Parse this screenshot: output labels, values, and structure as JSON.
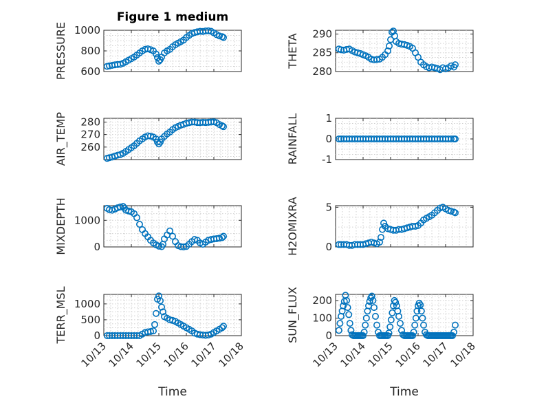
{
  "figure": {
    "title": "Figure 1 medium",
    "marker_color": "#0072bd",
    "x_tick_labels": [
      "10/13",
      "10/14",
      "10/15",
      "10/16",
      "10/17",
      "10/18"
    ],
    "x_axis_label": "Time"
  },
  "chart_data": [
    {
      "type": "scatter",
      "name": "pressure",
      "ylabel": "PRESSURE",
      "title": "Figure 1 medium",
      "xlim": [
        13,
        18
      ],
      "ylim": [
        600,
        1000
      ],
      "yticks": [
        600,
        800,
        1000
      ],
      "grid": true,
      "series": [
        {
          "x": [
            13.12,
            13.2,
            13.3,
            13.4,
            13.5,
            13.6,
            13.7,
            13.8,
            13.9,
            14.0,
            14.1,
            14.2,
            14.3,
            14.4,
            14.5,
            14.6,
            14.7,
            14.8,
            14.9,
            14.95,
            15.0,
            15.05,
            15.1,
            15.2,
            15.3,
            15.4,
            15.5,
            15.6,
            15.7,
            15.8,
            15.9,
            16.0,
            16.1,
            16.2,
            16.3,
            16.4,
            16.5,
            16.6,
            16.7,
            16.8,
            16.9,
            17.0,
            17.1,
            17.2,
            17.3,
            17.35
          ],
          "y": [
            650,
            655,
            660,
            665,
            668,
            670,
            680,
            695,
            710,
            725,
            740,
            760,
            780,
            800,
            815,
            820,
            812,
            800,
            770,
            735,
            700,
            715,
            740,
            780,
            800,
            815,
            840,
            860,
            875,
            890,
            905,
            930,
            950,
            968,
            978,
            985,
            990,
            988,
            993,
            995,
            990,
            975,
            958,
            945,
            938,
            930
          ]
        }
      ]
    },
    {
      "type": "scatter",
      "name": "theta",
      "ylabel": "THETA",
      "xlim": [
        13,
        18
      ],
      "ylim": [
        280,
        291
      ],
      "yticks": [
        280,
        285,
        290
      ],
      "grid": true,
      "series": [
        {
          "x": [
            13.12,
            13.2,
            13.3,
            13.4,
            13.5,
            13.6,
            13.7,
            13.8,
            13.9,
            14.0,
            14.1,
            14.2,
            14.3,
            14.4,
            14.5,
            14.6,
            14.7,
            14.8,
            14.9,
            14.95,
            15.0,
            15.05,
            15.1,
            15.15,
            15.2,
            15.3,
            15.4,
            15.5,
            15.6,
            15.7,
            15.8,
            15.9,
            16.0,
            16.1,
            16.2,
            16.3,
            16.4,
            16.5,
            16.6,
            16.7,
            16.8,
            16.9,
            17.0,
            17.1,
            17.2,
            17.3,
            17.35
          ],
          "y": [
            286,
            285.8,
            285.7,
            285.9,
            286,
            285.6,
            285.2,
            285,
            284.8,
            284.5,
            284.2,
            283.8,
            283.3,
            283.1,
            283.2,
            283.3,
            283.8,
            284.5,
            285.5,
            286.8,
            288.5,
            290.5,
            290.8,
            289.5,
            288,
            287.5,
            287.3,
            287.2,
            287,
            286.7,
            286.2,
            285,
            283.8,
            282.5,
            281.8,
            281.3,
            281,
            281.2,
            281,
            280.8,
            280.5,
            281,
            280.7,
            281,
            281.5,
            281.2,
            281.8
          ]
        }
      ]
    },
    {
      "type": "scatter",
      "name": "air_temp",
      "ylabel": "AIR_TEMP",
      "xlim": [
        13,
        18
      ],
      "ylim": [
        250,
        283
      ],
      "yticks": [
        260,
        270,
        280
      ],
      "grid": true,
      "series": [
        {
          "x": [
            13.12,
            13.2,
            13.3,
            13.4,
            13.5,
            13.6,
            13.7,
            13.8,
            13.9,
            14.0,
            14.1,
            14.2,
            14.3,
            14.4,
            14.5,
            14.6,
            14.7,
            14.8,
            14.9,
            14.95,
            15.0,
            15.05,
            15.1,
            15.2,
            15.3,
            15.4,
            15.5,
            15.6,
            15.7,
            15.8,
            15.9,
            16.0,
            16.1,
            16.2,
            16.3,
            16.4,
            16.5,
            16.6,
            16.7,
            16.8,
            16.9,
            17.0,
            17.1,
            17.2,
            17.3,
            17.35
          ],
          "y": [
            251,
            251.5,
            252,
            252.8,
            253.5,
            254,
            255,
            256.5,
            258,
            259.5,
            261,
            263,
            265,
            266.5,
            268,
            269,
            268.8,
            268,
            266.5,
            264,
            262.5,
            264,
            266.5,
            268.5,
            270.5,
            272,
            274,
            275.5,
            276.5,
            277.5,
            278.2,
            279,
            279.5,
            280,
            280,
            279.6,
            279.5,
            279.8,
            279.6,
            279.8,
            280,
            280.2,
            279.5,
            278,
            277,
            276.3
          ]
        }
      ]
    },
    {
      "type": "scatter",
      "name": "rainfall",
      "ylabel": "RAINFALL",
      "xlim": [
        13,
        18
      ],
      "ylim": [
        -1,
        1
      ],
      "yticks": [
        -1,
        0,
        1
      ],
      "grid": true,
      "series": [
        {
          "x": [
            13.12,
            13.2,
            13.3,
            13.4,
            13.5,
            13.6,
            13.7,
            13.8,
            13.9,
            14.0,
            14.1,
            14.2,
            14.3,
            14.4,
            14.5,
            14.6,
            14.7,
            14.8,
            14.9,
            15.0,
            15.1,
            15.2,
            15.3,
            15.4,
            15.5,
            15.6,
            15.7,
            15.8,
            15.9,
            16.0,
            16.1,
            16.2,
            16.3,
            16.4,
            16.5,
            16.6,
            16.7,
            16.8,
            16.9,
            17.0,
            17.1,
            17.2,
            17.3,
            17.35
          ],
          "y": [
            0,
            0,
            0,
            0,
            0,
            0,
            0,
            0,
            0,
            0,
            0,
            0,
            0,
            0,
            0,
            0,
            0,
            0,
            0,
            0,
            0,
            0,
            0,
            0,
            0,
            0,
            0,
            0,
            0,
            0,
            0,
            0,
            0,
            0,
            0,
            0,
            0,
            0,
            0,
            0,
            0,
            0,
            0,
            0
          ]
        }
      ]
    },
    {
      "type": "scatter",
      "name": "mixdepth",
      "ylabel": "MIXDEPTH",
      "xlim": [
        13,
        18
      ],
      "ylim": [
        0,
        1550
      ],
      "yticks": [
        0,
        1000
      ],
      "grid": true,
      "series": [
        {
          "x": [
            13.12,
            13.2,
            13.3,
            13.4,
            13.5,
            13.6,
            13.7,
            13.75,
            13.8,
            13.9,
            14.0,
            14.1,
            14.2,
            14.3,
            14.4,
            14.5,
            14.6,
            14.7,
            14.8,
            14.9,
            15.0,
            15.1,
            15.15,
            15.2,
            15.3,
            15.4,
            15.5,
            15.6,
            15.7,
            15.8,
            15.9,
            16.0,
            16.1,
            16.2,
            16.3,
            16.4,
            16.5,
            16.6,
            16.7,
            16.8,
            16.9,
            17.0,
            17.1,
            17.2,
            17.3,
            17.35
          ],
          "y": [
            1450,
            1400,
            1380,
            1420,
            1470,
            1500,
            1520,
            1460,
            1380,
            1350,
            1320,
            1250,
            1100,
            850,
            650,
            500,
            380,
            250,
            150,
            80,
            30,
            10,
            100,
            300,
            450,
            600,
            400,
            200,
            50,
            10,
            0,
            20,
            100,
            200,
            280,
            250,
            150,
            100,
            180,
            250,
            280,
            300,
            310,
            330,
            350,
            400
          ]
        }
      ]
    },
    {
      "type": "scatter",
      "name": "h2omixra",
      "ylabel": "H2OMIXRA",
      "xlim": [
        13,
        18
      ],
      "ylim": [
        0,
        5.2
      ],
      "yticks": [
        0,
        5
      ],
      "grid": true,
      "series": [
        {
          "x": [
            13.12,
            13.2,
            13.3,
            13.4,
            13.5,
            13.6,
            13.7,
            13.8,
            13.9,
            14.0,
            14.1,
            14.2,
            14.3,
            14.4,
            14.5,
            14.6,
            14.65,
            14.7,
            14.75,
            14.8,
            14.9,
            15.0,
            15.1,
            15.2,
            15.3,
            15.4,
            15.5,
            15.6,
            15.7,
            15.8,
            15.9,
            16.0,
            16.1,
            16.2,
            16.3,
            16.4,
            16.5,
            16.6,
            16.7,
            16.8,
            16.9,
            17.0,
            17.1,
            17.2,
            17.3,
            17.35
          ],
          "y": [
            0.3,
            0.3,
            0.3,
            0.3,
            0.2,
            0.2,
            0.3,
            0.3,
            0.3,
            0.3,
            0.4,
            0.5,
            0.6,
            0.5,
            0.4,
            0.6,
            1.2,
            2.2,
            3.0,
            2.6,
            2.3,
            2.2,
            2.1,
            2.1,
            2.2,
            2.2,
            2.3,
            2.4,
            2.5,
            2.6,
            2.6,
            2.7,
            3.0,
            3.4,
            3.6,
            3.8,
            4.0,
            4.3,
            4.6,
            4.9,
            5.0,
            4.8,
            4.6,
            4.5,
            4.4,
            4.3
          ]
        }
      ]
    },
    {
      "type": "scatter",
      "name": "terr_msl",
      "ylabel": "TERR_MSL",
      "xlim": [
        13,
        18
      ],
      "ylim": [
        0,
        1300
      ],
      "yticks": [
        0,
        500,
        1000
      ],
      "xlabel": "Time",
      "grid": true,
      "series": [
        {
          "x": [
            13.12,
            13.2,
            13.3,
            13.4,
            13.5,
            13.6,
            13.7,
            13.8,
            13.9,
            14.0,
            14.1,
            14.2,
            14.3,
            14.4,
            14.5,
            14.6,
            14.7,
            14.8,
            14.85,
            14.9,
            14.95,
            15.0,
            15.05,
            15.1,
            15.15,
            15.2,
            15.3,
            15.4,
            15.5,
            15.6,
            15.7,
            15.8,
            15.9,
            16.0,
            16.1,
            16.2,
            16.3,
            16.4,
            16.5,
            16.6,
            16.7,
            16.8,
            16.9,
            17.0,
            17.1,
            17.2,
            17.3,
            17.35
          ],
          "y": [
            0,
            0,
            0,
            0,
            0,
            0,
            0,
            0,
            0,
            0,
            0,
            0,
            0,
            50,
            100,
            120,
            130,
            150,
            350,
            700,
            1150,
            1250,
            1100,
            900,
            750,
            600,
            550,
            500,
            480,
            450,
            400,
            350,
            300,
            250,
            200,
            150,
            80,
            50,
            30,
            20,
            10,
            20,
            50,
            100,
            150,
            200,
            250,
            300
          ]
        }
      ]
    },
    {
      "type": "scatter",
      "name": "sun_flux",
      "ylabel": "SUN_FLUX",
      "xlim": [
        13,
        18
      ],
      "ylim": [
        0,
        235
      ],
      "yticks": [
        0,
        100,
        200
      ],
      "xlabel": "Time",
      "grid": true,
      "series": [
        {
          "x": [
            13.12,
            13.16,
            13.2,
            13.24,
            13.28,
            13.32,
            13.36,
            13.4,
            13.44,
            13.48,
            13.52,
            13.56,
            13.6,
            13.65,
            13.7,
            13.75,
            13.8,
            13.85,
            13.9,
            13.95,
            14.0,
            14.04,
            14.08,
            14.12,
            14.16,
            14.2,
            14.24,
            14.28,
            14.32,
            14.36,
            14.4,
            14.45,
            14.5,
            14.55,
            14.6,
            14.65,
            14.7,
            14.75,
            14.8,
            14.85,
            14.9,
            14.94,
            14.98,
            15.02,
            15.06,
            15.1,
            15.14,
            15.18,
            15.22,
            15.26,
            15.3,
            15.35,
            15.4,
            15.45,
            15.5,
            15.55,
            15.6,
            15.65,
            15.7,
            15.75,
            15.8,
            15.84,
            15.88,
            15.92,
            15.96,
            16.0,
            16.04,
            16.08,
            16.12,
            16.16,
            16.2,
            16.25,
            16.3,
            16.35,
            16.4,
            16.45,
            16.5,
            16.55,
            16.6,
            16.65,
            16.7,
            16.75,
            16.8,
            16.85,
            16.9,
            16.95,
            17.0,
            17.05,
            17.1,
            17.15,
            17.2,
            17.25,
            17.3,
            17.35
          ],
          "y": [
            30,
            70,
            110,
            140,
            170,
            195,
            230,
            200,
            160,
            120,
            70,
            30,
            5,
            0,
            0,
            0,
            0,
            0,
            0,
            0,
            0,
            20,
            60,
            100,
            140,
            170,
            195,
            215,
            225,
            200,
            160,
            110,
            60,
            20,
            0,
            0,
            0,
            0,
            0,
            0,
            0,
            15,
            50,
            90,
            130,
            170,
            200,
            190,
            170,
            140,
            110,
            70,
            30,
            5,
            0,
            0,
            0,
            0,
            0,
            0,
            0,
            20,
            60,
            100,
            140,
            170,
            185,
            175,
            140,
            100,
            60,
            20,
            5,
            0,
            0,
            0,
            0,
            0,
            0,
            0,
            0,
            0,
            0,
            0,
            0,
            0,
            0,
            0,
            0,
            0,
            0,
            0,
            20,
            60
          ]
        }
      ]
    }
  ]
}
